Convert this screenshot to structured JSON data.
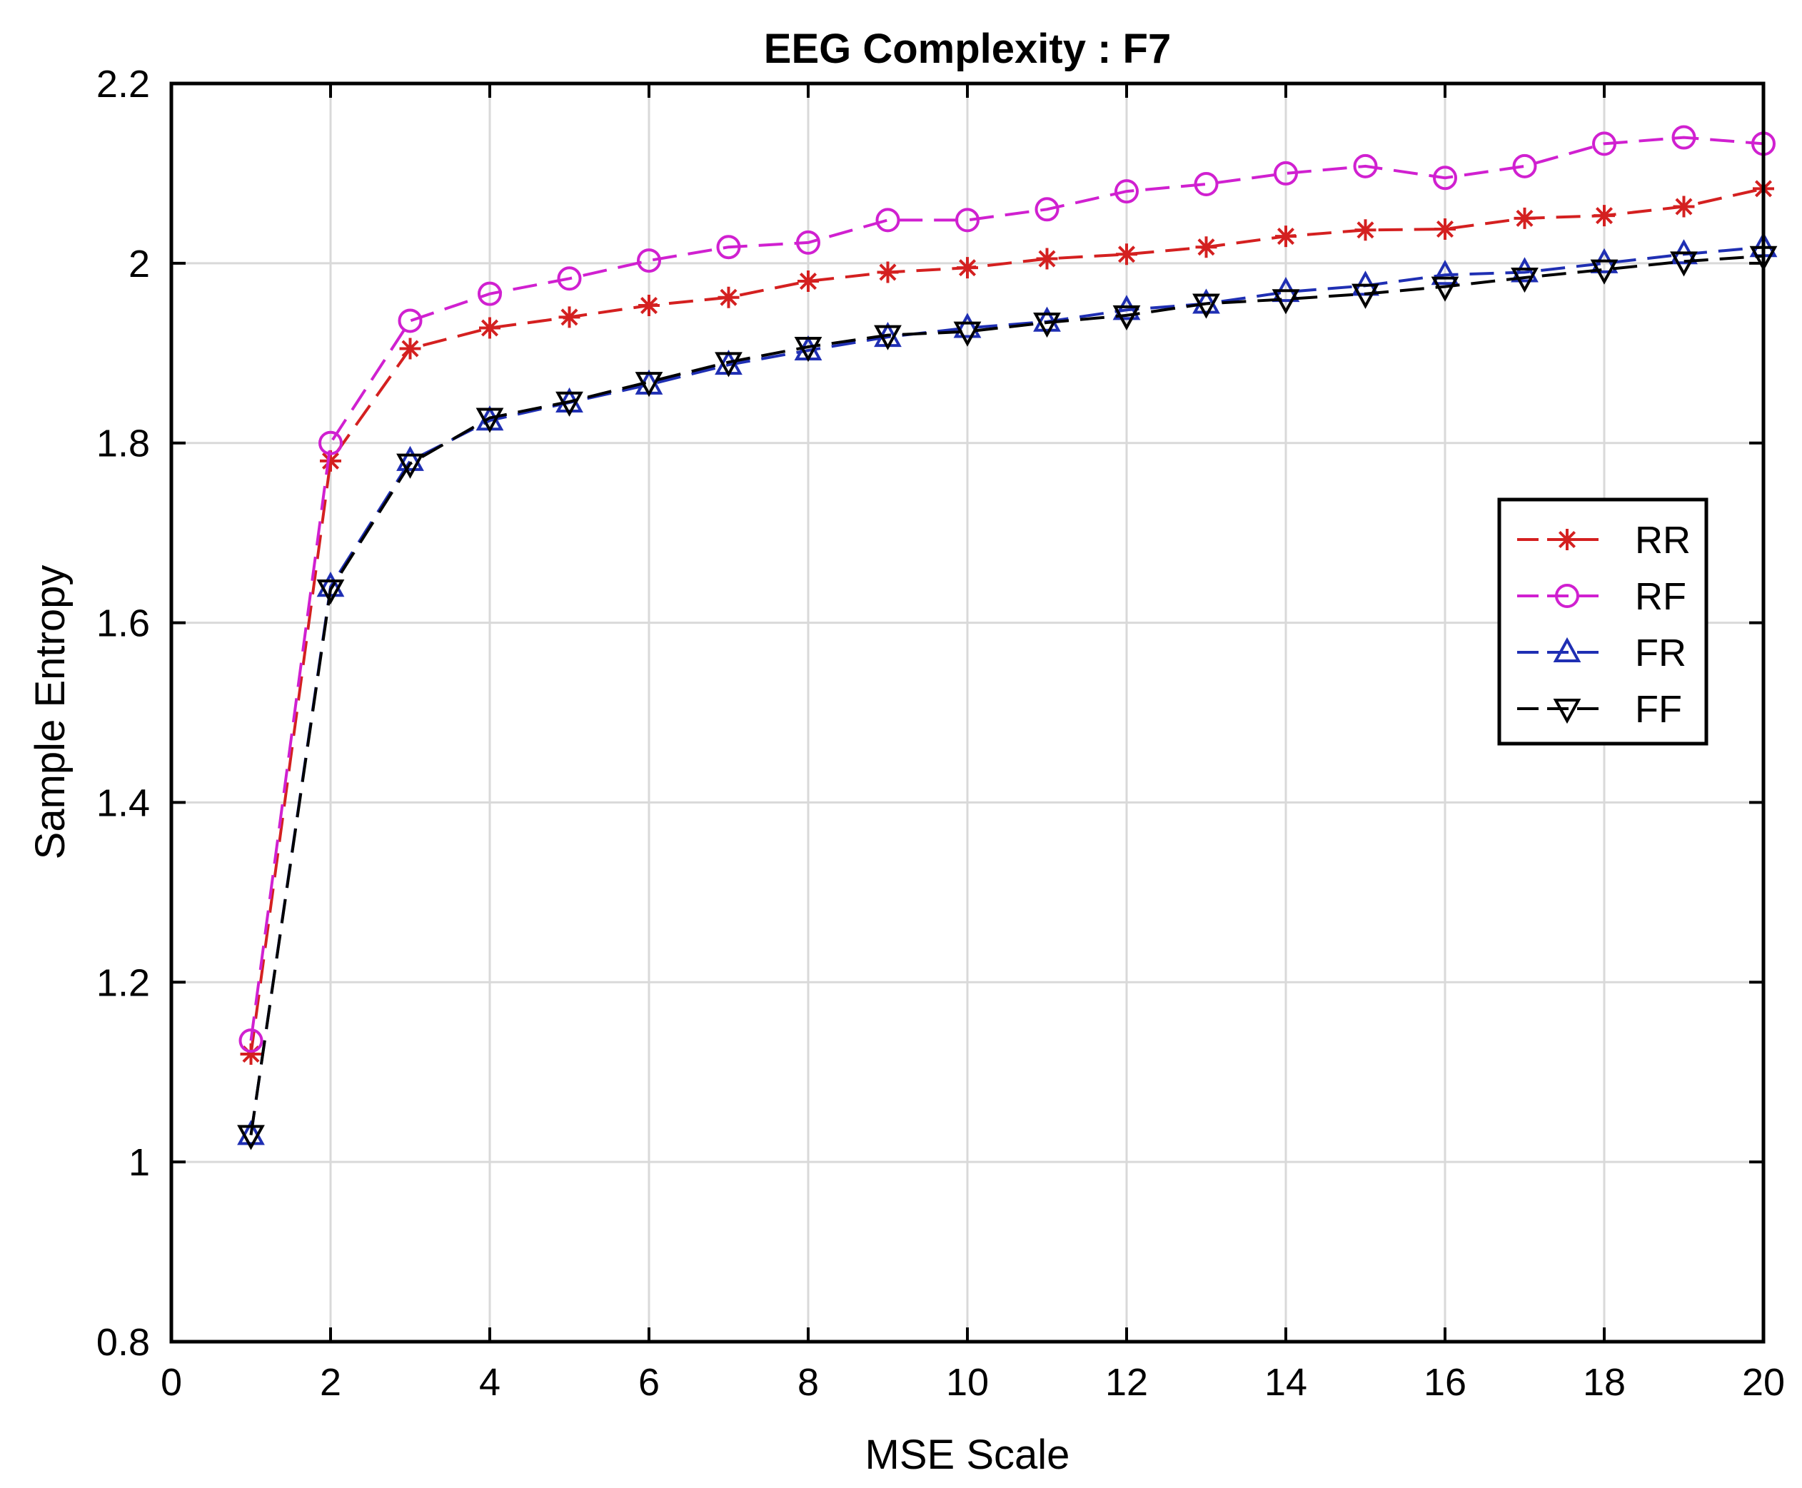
{
  "chart_data": {
    "type": "line",
    "title": "EEG Complexity : F7",
    "xlabel": "MSE Scale",
    "ylabel": "Sample Entropy",
    "xlim": [
      0,
      20
    ],
    "ylim": [
      0.8,
      2.2
    ],
    "xticks": [
      0,
      2,
      4,
      6,
      8,
      10,
      12,
      14,
      16,
      18,
      20
    ],
    "yticks": [
      0.8,
      1,
      1.2,
      1.4,
      1.6,
      1.8,
      2,
      2.2
    ],
    "ytick_labels": [
      "0.8",
      "1",
      "1.2",
      "1.4",
      "1.6",
      "1.8",
      "2",
      "2.2"
    ],
    "grid": true,
    "legend_position": "right",
    "x": [
      1,
      2,
      3,
      4,
      5,
      6,
      7,
      8,
      9,
      10,
      11,
      12,
      13,
      14,
      15,
      16,
      17,
      18,
      19,
      20
    ],
    "series": [
      {
        "name": "RR",
        "color": "#d42020",
        "marker": "star",
        "values": [
          1.12,
          1.78,
          1.905,
          1.928,
          1.94,
          1.953,
          1.962,
          1.98,
          1.99,
          1.995,
          2.005,
          2.01,
          2.018,
          2.03,
          2.037,
          2.038,
          2.05,
          2.053,
          2.063,
          2.083
        ]
      },
      {
        "name": "RF",
        "color": "#d020d0",
        "marker": "circle",
        "values": [
          1.135,
          1.8,
          1.936,
          1.966,
          1.983,
          2.003,
          2.018,
          2.023,
          2.048,
          2.048,
          2.06,
          2.08,
          2.088,
          2.1,
          2.108,
          2.095,
          2.108,
          2.133,
          2.14,
          2.133
        ]
      },
      {
        "name": "FR",
        "color": "#1f2fb3",
        "marker": "triangle-up",
        "values": [
          1.03,
          1.64,
          1.78,
          1.825,
          1.845,
          1.865,
          1.887,
          1.903,
          1.918,
          1.928,
          1.935,
          1.948,
          1.955,
          1.968,
          1.975,
          1.987,
          1.99,
          2.0,
          2.01,
          2.018
        ]
      },
      {
        "name": "FF",
        "color": "#000000",
        "marker": "triangle-down",
        "values": [
          1.03,
          1.637,
          1.777,
          1.828,
          1.846,
          1.868,
          1.89,
          1.907,
          1.92,
          1.924,
          1.934,
          1.942,
          1.955,
          1.96,
          1.966,
          1.974,
          1.984,
          1.993,
          2.002,
          2.008
        ]
      }
    ]
  }
}
